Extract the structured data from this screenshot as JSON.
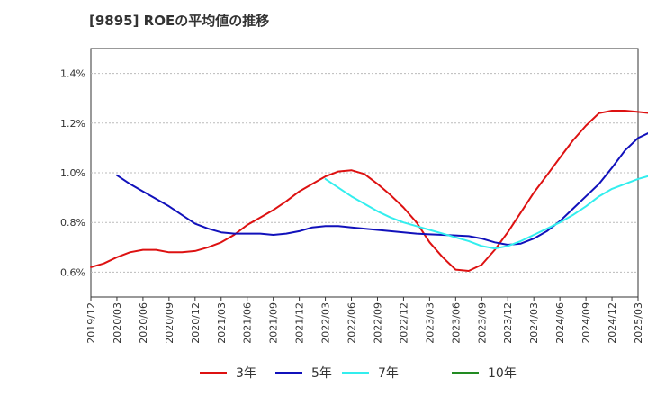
{
  "chart_data": {
    "type": "line",
    "title": "[9895]  ROEの平均値の推移",
    "xlabel": "",
    "ylabel": "",
    "ylim": [
      0.5,
      1.5
    ],
    "yticks": [
      0.6,
      0.8,
      1.0,
      1.2,
      1.4
    ],
    "ytick_labels": [
      "0.6%",
      "0.8%",
      "1.0%",
      "1.2%",
      "1.4%"
    ],
    "x_tick_labels": [
      "2019/12",
      "2020/03",
      "2020/06",
      "2020/09",
      "2020/12",
      "2021/03",
      "2021/06",
      "2021/09",
      "2021/12",
      "2022/03",
      "2022/06",
      "2022/09",
      "2022/12",
      "2023/03",
      "2023/06",
      "2023/09",
      "2023/12",
      "2024/03",
      "2024/06",
      "2024/09",
      "2024/12",
      "2025/03"
    ],
    "grid": "horizontal",
    "legend_position": "bottom",
    "series": [
      {
        "name": "3年",
        "color": "#dd1111",
        "start_index": 0,
        "values": [
          0.62,
          0.635,
          0.66,
          0.68,
          0.69,
          0.69,
          0.68,
          0.68,
          0.685,
          0.7,
          0.72,
          0.75,
          0.79,
          0.82,
          0.85,
          0.885,
          0.925,
          0.955,
          0.985,
          1.005,
          1.01,
          0.995,
          0.955,
          0.91,
          0.86,
          0.8,
          0.72,
          0.66,
          0.61,
          0.605,
          0.63,
          0.69,
          0.76,
          0.84,
          0.92,
          0.99,
          1.06,
          1.13,
          1.19,
          1.24,
          1.25,
          1.25,
          1.245,
          1.24
        ]
      },
      {
        "name": "5年",
        "color": "#1111bb",
        "start_index": 2,
        "values": [
          0.99,
          0.955,
          0.925,
          0.895,
          0.865,
          0.83,
          0.795,
          0.775,
          0.76,
          0.755,
          0.755,
          0.755,
          0.75,
          0.755,
          0.765,
          0.78,
          0.785,
          0.785,
          0.78,
          0.775,
          0.77,
          0.765,
          0.76,
          0.755,
          0.752,
          0.75,
          0.748,
          0.745,
          0.735,
          0.72,
          0.71,
          0.715,
          0.735,
          0.765,
          0.805,
          0.855,
          0.905,
          0.955,
          1.02,
          1.09,
          1.14,
          1.165,
          1.165,
          1.162,
          1.155
        ]
      },
      {
        "name": "7年",
        "color": "#33eeee",
        "start_index": 18,
        "values": [
          0.975,
          0.94,
          0.905,
          0.875,
          0.845,
          0.82,
          0.8,
          0.785,
          0.77,
          0.755,
          0.74,
          0.725,
          0.705,
          0.695,
          0.705,
          0.725,
          0.75,
          0.775,
          0.8,
          0.83,
          0.865,
          0.905,
          0.935,
          0.955,
          0.975,
          0.99
        ]
      },
      {
        "name": "10年",
        "color": "#228b22",
        "start_index": 0,
        "values": []
      }
    ]
  }
}
